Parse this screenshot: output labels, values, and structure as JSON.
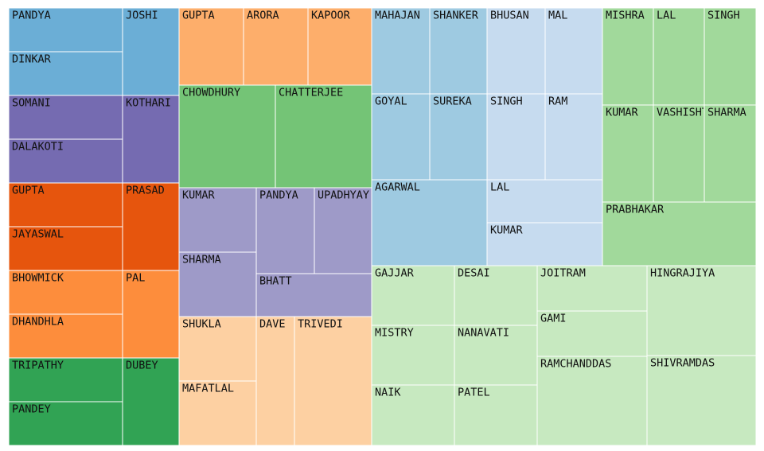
{
  "chart_data": {
    "type": "treemap",
    "title": "",
    "groups": [
      {
        "color": "#6baed6",
        "items": [
          {
            "name": "PANDYA"
          },
          {
            "name": "DINKAR"
          },
          {
            "name": "JOSHI"
          }
        ]
      },
      {
        "color": "#756bb1",
        "items": [
          {
            "name": "SOMANI"
          },
          {
            "name": "DALAKOTI"
          },
          {
            "name": "KOTHARI"
          }
        ]
      },
      {
        "color": "#e6550d",
        "items": [
          {
            "name": "GUPTA"
          },
          {
            "name": "JAYASWAL"
          },
          {
            "name": "PRASAD"
          }
        ]
      },
      {
        "color": "#fd8d3c",
        "items": [
          {
            "name": "BHOWMICK"
          },
          {
            "name": "DHANDHLA"
          },
          {
            "name": "PAL"
          }
        ]
      },
      {
        "color": "#31a354",
        "items": [
          {
            "name": "TRIPATHY"
          },
          {
            "name": "PANDEY"
          },
          {
            "name": "DUBEY"
          }
        ]
      },
      {
        "color": "#fdae6b",
        "items": [
          {
            "name": "GUPTA"
          },
          {
            "name": "ARORA"
          },
          {
            "name": "KAPOOR"
          }
        ]
      },
      {
        "color": "#74c476",
        "items": [
          {
            "name": "CHOWDHURY"
          },
          {
            "name": "CHATTERJEE"
          }
        ]
      },
      {
        "color": "#9e9ac8",
        "items": [
          {
            "name": "KUMAR"
          },
          {
            "name": "PANDYA"
          },
          {
            "name": "UPADHYAY"
          },
          {
            "name": "SHARMA"
          },
          {
            "name": "BHATT"
          }
        ]
      },
      {
        "color": "#fdd0a2",
        "items": [
          {
            "name": "SHUKLA"
          },
          {
            "name": "MAFATLAL"
          },
          {
            "name": "DAVE"
          },
          {
            "name": "TRIVEDI"
          }
        ]
      },
      {
        "color": "#9ecae1",
        "items": [
          {
            "name": "MAHAJAN"
          },
          {
            "name": "SHANKER"
          },
          {
            "name": "GOYAL"
          },
          {
            "name": "SUREKA"
          },
          {
            "name": "AGARWAL"
          }
        ]
      },
      {
        "color": "#c6dbef",
        "items": [
          {
            "name": "BHUSAN"
          },
          {
            "name": "MAL"
          },
          {
            "name": "SINGH"
          },
          {
            "name": "RAM"
          },
          {
            "name": "LAL"
          },
          {
            "name": "KUMAR"
          }
        ]
      },
      {
        "color": "#a1d99b",
        "items": [
          {
            "name": "MISHRA"
          },
          {
            "name": "LAL"
          },
          {
            "name": "SINGH"
          },
          {
            "name": "KUMAR"
          },
          {
            "name": "VASHISHT"
          },
          {
            "name": "SHARMA"
          },
          {
            "name": "PRABHAKAR"
          }
        ]
      },
      {
        "color": "#c7e9c0",
        "items": [
          {
            "name": "GAJJAR"
          },
          {
            "name": "DESAI"
          },
          {
            "name": "MISTRY"
          },
          {
            "name": "NANAVATI"
          },
          {
            "name": "NAIK"
          },
          {
            "name": "PATEL"
          },
          {
            "name": "JOITRAM"
          },
          {
            "name": "GAMI"
          },
          {
            "name": "RAMCHANDDAS"
          },
          {
            "name": "HINGRAJIYA"
          },
          {
            "name": "SHIVRAMDAS"
          }
        ]
      }
    ]
  }
}
